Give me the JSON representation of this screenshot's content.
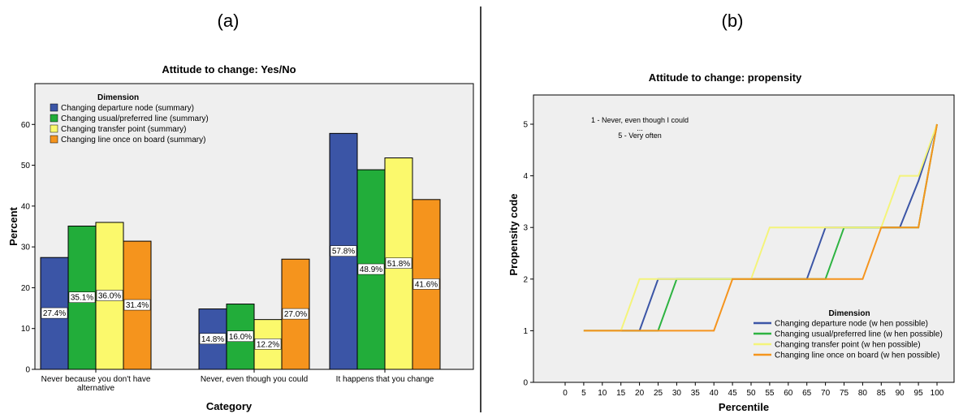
{
  "panels": {
    "a_label": "(a)",
    "b_label": "(b)"
  },
  "chart_data": [
    {
      "type": "bar",
      "title": "Attitude to change: Yes/No",
      "xlabel": "Category",
      "ylabel": "Percent",
      "ylim": [
        0,
        70
      ],
      "yticks": [
        0,
        10,
        20,
        30,
        40,
        50,
        60
      ],
      "categories": [
        [
          "Never because you don't have",
          "alternative"
        ],
        [
          "Never, even though you could"
        ],
        [
          "It happens that you change"
        ]
      ],
      "legend_title": "Dimension",
      "legend_position": "top-left",
      "grid": false,
      "background": "#efefef",
      "series": [
        {
          "name": "Changing departure node (summary)",
          "color": "#3b55a6",
          "values": [
            27.4,
            14.8,
            57.8
          ],
          "labels": [
            "27.4%",
            "14.8%",
            "57.8%"
          ]
        },
        {
          "name": "Changing usual/preferred line  (summary)",
          "color": "#22ad3a",
          "values": [
            35.1,
            16.0,
            48.9
          ],
          "labels": [
            "35.1%",
            "16.0%",
            "48.9%"
          ]
        },
        {
          "name": "Changing transfer point  (summary)",
          "color": "#fbf96c",
          "values": [
            36.0,
            12.2,
            51.8
          ],
          "labels": [
            "36.0%",
            "12.2%",
            "51.8%"
          ]
        },
        {
          "name": "Changing line once on board  (summary)",
          "color": "#f5941d",
          "values": [
            31.4,
            27.0,
            41.6
          ],
          "labels": [
            "31.4%",
            "27.0%",
            "41.6%"
          ]
        }
      ]
    },
    {
      "type": "line",
      "title": "Attitude to change: propensity",
      "xlabel": "Percentile",
      "ylabel": "Propensity code",
      "xticks": [
        0,
        5,
        10,
        15,
        20,
        25,
        30,
        35,
        40,
        45,
        50,
        55,
        60,
        65,
        70,
        75,
        80,
        85,
        90,
        95,
        100
      ],
      "yticks": [
        0,
        1,
        2,
        3,
        4,
        5
      ],
      "xlim": [
        -10,
        105
      ],
      "ylim": [
        0,
        5.5
      ],
      "legend_title": "Dimension",
      "legend_position": "bottom-right",
      "grid": false,
      "background": "#efefef",
      "annotation": [
        "1 - Never, even though I could",
        "...",
        "5 - Very often"
      ],
      "series": [
        {
          "name": "Changing departure node (w hen possible)",
          "color": "#3b55a6",
          "x": [
            5,
            20,
            25,
            45,
            65,
            70,
            85,
            90,
            95,
            100
          ],
          "y": [
            1,
            1,
            2,
            2,
            2,
            3,
            3,
            3,
            3.9,
            5
          ]
        },
        {
          "name": "Changing usual/preferred line (w hen possible)",
          "color": "#2db341",
          "x": [
            5,
            25,
            30,
            45,
            70,
            75,
            85,
            95,
            100
          ],
          "y": [
            1,
            1,
            2,
            2,
            2,
            3,
            3,
            3,
            5
          ]
        },
        {
          "name": "Changing transfer point (w hen possible)",
          "color": "#f4f47a",
          "x": [
            5,
            15,
            20,
            50,
            55,
            85,
            90,
            95,
            100
          ],
          "y": [
            1,
            1,
            2,
            2,
            3,
            3,
            4,
            4,
            5
          ]
        },
        {
          "name": "Changing line once on board (w hen possible)",
          "color": "#f5941d",
          "x": [
            5,
            40,
            45,
            80,
            85,
            95,
            100
          ],
          "y": [
            1,
            1,
            2,
            2,
            3,
            3,
            5
          ]
        }
      ]
    }
  ]
}
